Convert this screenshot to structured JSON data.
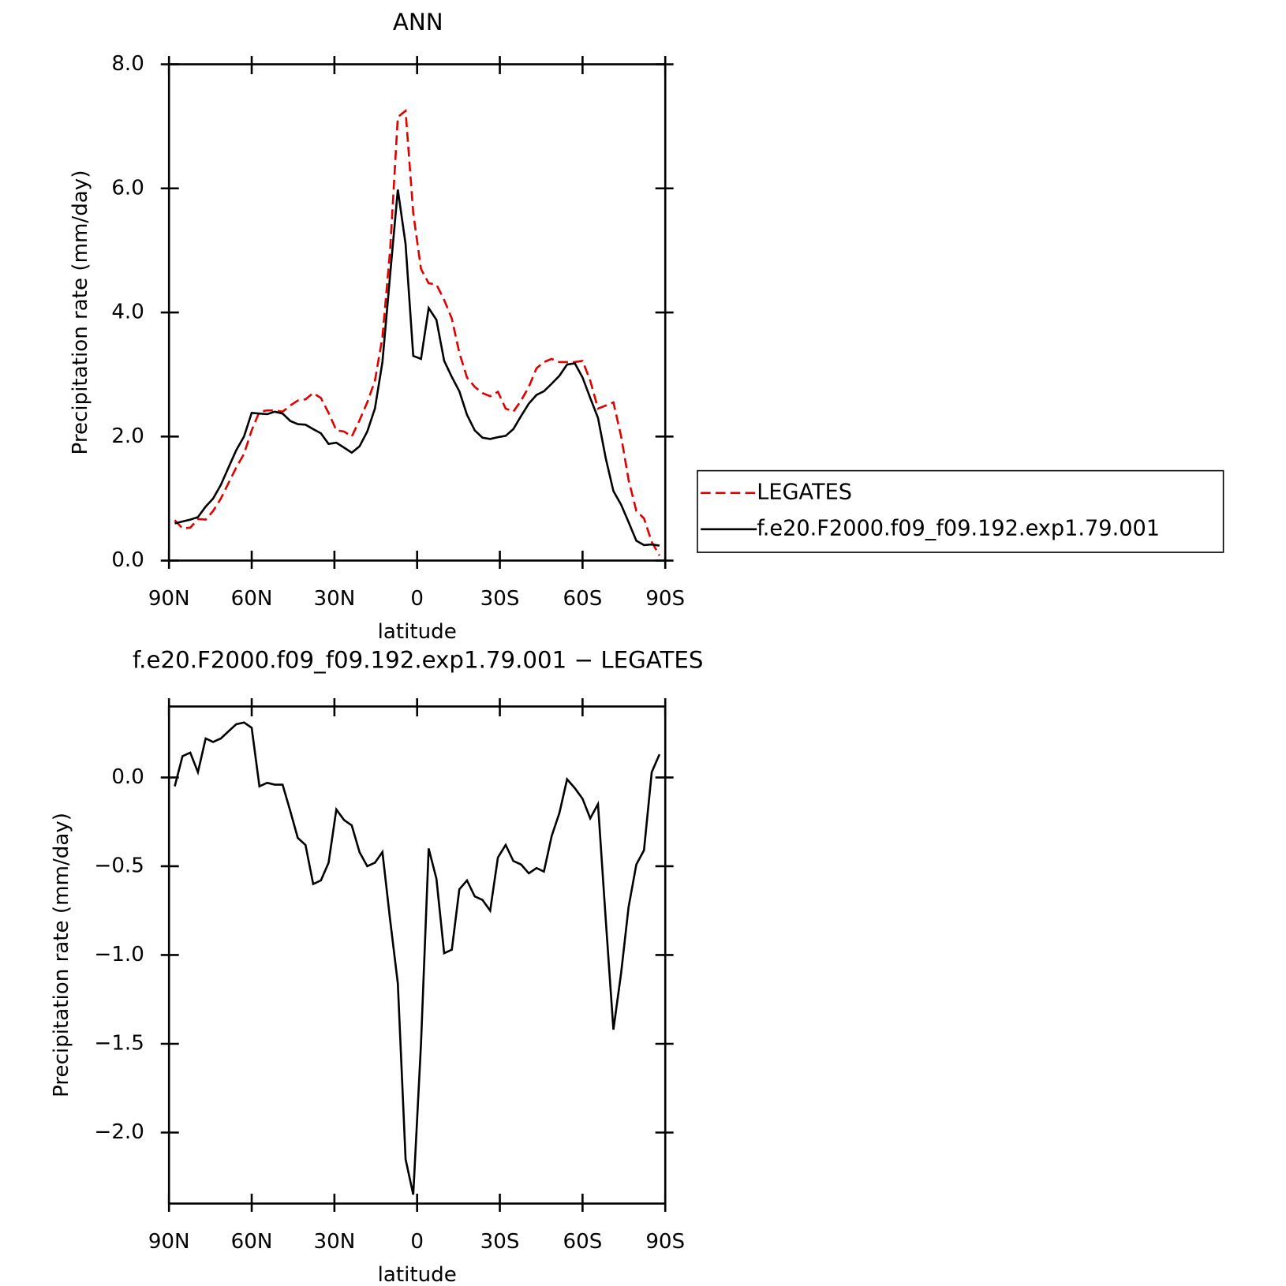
{
  "chart_data": [
    {
      "type": "line",
      "title": "ANN",
      "x_label": "latitude",
      "y_label": "Precipitation rate (mm/day)",
      "x": [
        87.9,
        85.1,
        82.3,
        79.5,
        76.7,
        74.0,
        71.2,
        68.4,
        65.6,
        62.8,
        60.0,
        57.2,
        54.4,
        51.6,
        48.8,
        46.0,
        43.3,
        40.5,
        37.7,
        34.9,
        32.1,
        29.3,
        26.5,
        23.7,
        20.9,
        18.1,
        15.3,
        12.6,
        9.8,
        7.0,
        4.2,
        1.4,
        -1.4,
        -4.2,
        -7.0,
        -9.8,
        -12.6,
        -15.3,
        -18.1,
        -20.9,
        -23.7,
        -26.5,
        -29.3,
        -32.1,
        -34.9,
        -37.7,
        -40.5,
        -43.3,
        -46.0,
        -48.8,
        -51.6,
        -54.4,
        -57.2,
        -60.0,
        -62.8,
        -65.6,
        -68.4,
        -71.2,
        -74.0,
        -76.7,
        -79.5,
        -82.3,
        -85.1,
        -87.9
      ],
      "series": [
        {
          "name": "LEGATES",
          "color": "#e00000",
          "dash": true,
          "values": [
            0.65,
            0.52,
            0.53,
            0.67,
            0.66,
            0.8,
            1.0,
            1.25,
            1.5,
            1.72,
            2.1,
            2.4,
            2.42,
            2.42,
            2.4,
            2.5,
            2.58,
            2.6,
            2.7,
            2.62,
            2.38,
            2.1,
            2.08,
            2.0,
            2.26,
            2.55,
            2.9,
            3.6,
            5.0,
            7.15,
            7.25,
            5.6,
            4.7,
            4.47,
            4.45,
            4.2,
            3.9,
            3.35,
            2.95,
            2.8,
            2.7,
            2.65,
            2.72,
            2.45,
            2.4,
            2.58,
            2.8,
            3.1,
            3.2,
            3.25,
            3.2,
            3.2,
            3.2,
            3.22,
            2.9,
            2.45,
            2.5,
            2.55,
            2.0,
            1.3,
            0.8,
            0.68,
            0.3,
            0.08
          ]
        },
        {
          "name": "f.e20.F2000.f09_f09.192.exp1.79.001",
          "color": "#000000",
          "dash": false,
          "values": [
            0.6,
            0.63,
            0.66,
            0.7,
            0.87,
            1.0,
            1.22,
            1.5,
            1.78,
            2.0,
            2.38,
            2.37,
            2.36,
            2.4,
            2.37,
            2.25,
            2.2,
            2.19,
            2.12,
            2.05,
            1.88,
            1.9,
            1.82,
            1.74,
            1.84,
            2.08,
            2.45,
            3.2,
            4.6,
            5.98,
            5.1,
            3.3,
            3.25,
            4.07,
            3.88,
            3.22,
            2.96,
            2.73,
            2.35,
            2.1,
            1.98,
            1.96,
            1.99,
            2.01,
            2.12,
            2.33,
            2.53,
            2.67,
            2.73,
            2.85,
            2.98,
            3.16,
            3.18,
            2.95,
            2.62,
            2.3,
            1.65,
            1.12,
            0.9,
            0.62,
            0.32,
            0.25,
            0.26,
            0.24
          ]
        }
      ],
      "xlim": [
        90,
        -90
      ],
      "xticks": [
        {
          "value": 90,
          "label": "90N"
        },
        {
          "value": 60,
          "label": "60N"
        },
        {
          "value": 30,
          "label": "30N"
        },
        0,
        {
          "value": -30,
          "label": "30S"
        },
        {
          "value": -60,
          "label": "60S"
        },
        {
          "value": -90,
          "label": "90S"
        }
      ],
      "ylim": [
        0,
        8
      ],
      "yticks": [
        {
          "value": 0,
          "label": "0.0"
        },
        {
          "value": 2,
          "label": "2.0"
        },
        {
          "value": 4,
          "label": "4.0"
        },
        {
          "value": 6,
          "label": "6.0"
        },
        {
          "value": 8,
          "label": "8.0"
        }
      ],
      "legend": "right"
    },
    {
      "type": "line",
      "title": "f.e20.F2000.f09_f09.192.exp1.79.001 − LEGATES",
      "x_label": "latitude",
      "y_label": "Precipitation rate (mm/day)",
      "x": [
        87.9,
        85.1,
        82.3,
        79.5,
        76.7,
        74.0,
        71.2,
        68.4,
        65.6,
        62.8,
        60.0,
        57.2,
        54.4,
        51.6,
        48.8,
        46.0,
        43.3,
        40.5,
        37.7,
        34.9,
        32.1,
        29.3,
        26.5,
        23.7,
        20.9,
        18.1,
        15.3,
        12.6,
        9.8,
        7.0,
        4.2,
        1.4,
        -1.4,
        -4.2,
        -7.0,
        -9.8,
        -12.6,
        -15.3,
        -18.1,
        -20.9,
        -23.7,
        -26.5,
        -29.3,
        -32.1,
        -34.9,
        -37.7,
        -40.5,
        -43.3,
        -46.0,
        -48.8,
        -51.6,
        -54.4,
        -57.2,
        -60.0,
        -62.8,
        -65.6,
        -68.4,
        -71.2,
        -74.0,
        -76.7,
        -79.5,
        -82.3,
        -85.1,
        -87.9
      ],
      "series": [
        {
          "color": "#000000",
          "dash": false,
          "values": [
            -0.05,
            0.12,
            0.14,
            0.03,
            0.22,
            0.2,
            0.22,
            0.26,
            0.3,
            0.31,
            0.28,
            -0.05,
            -0.03,
            -0.04,
            -0.04,
            -0.19,
            -0.34,
            -0.38,
            -0.6,
            -0.58,
            -0.48,
            -0.18,
            -0.24,
            -0.27,
            -0.42,
            -0.5,
            -0.48,
            -0.42,
            -0.8,
            -1.16,
            -2.15,
            -2.35,
            -1.5,
            -0.4,
            -0.57,
            -0.99,
            -0.97,
            -0.63,
            -0.58,
            -0.67,
            -0.69,
            -0.75,
            -0.45,
            -0.38,
            -0.47,
            -0.49,
            -0.54,
            -0.51,
            -0.53,
            -0.33,
            -0.2,
            -0.01,
            -0.06,
            -0.12,
            -0.23,
            -0.15,
            -0.8,
            -1.42,
            -1.1,
            -0.73,
            -0.49,
            -0.41,
            0.03,
            0.13
          ]
        }
      ],
      "xlim": [
        90,
        -90
      ],
      "xticks": [
        {
          "value": 90,
          "label": "90N"
        },
        {
          "value": 60,
          "label": "60N"
        },
        {
          "value": 30,
          "label": "30N"
        },
        0,
        {
          "value": -30,
          "label": "30S"
        },
        {
          "value": -60,
          "label": "60S"
        },
        {
          "value": -90,
          "label": "90S"
        }
      ],
      "ylim": [
        -2.4,
        0.4
      ],
      "yticks": [
        {
          "value": -2,
          "label": "−2.0"
        },
        {
          "value": -1.5,
          "label": "−1.5"
        },
        {
          "value": -1,
          "label": "−1.0"
        },
        {
          "value": -0.5,
          "label": "−0.5"
        },
        {
          "value": 0,
          "label": "0.0"
        }
      ]
    }
  ]
}
